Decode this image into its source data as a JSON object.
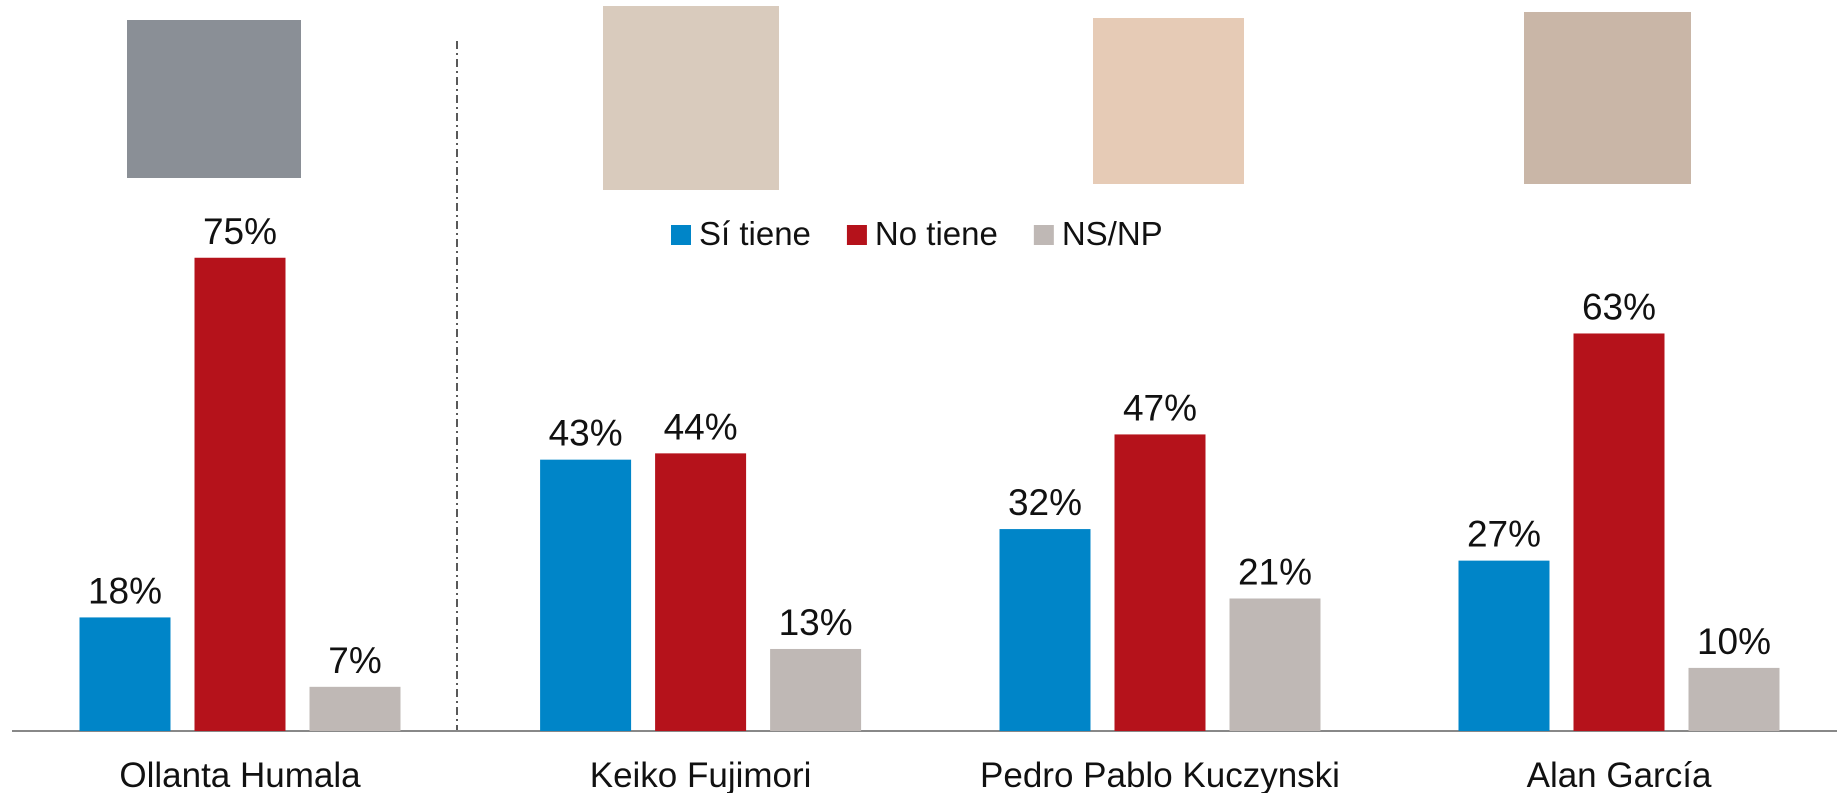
{
  "chart_data": {
    "type": "bar",
    "categories": [
      "Ollanta Humala",
      "Keiko Fujimori",
      "Pedro Pablo Kuczynski",
      "Alan García"
    ],
    "series": [
      {
        "name": "Sí tiene",
        "color": "#0085c8",
        "values": [
          18,
          43,
          32,
          27
        ],
        "value_labels": [
          "18%",
          "43%",
          "32%",
          "27%"
        ]
      },
      {
        "name": "No tiene",
        "color": "#b5121b",
        "values": [
          75,
          44,
          47,
          63
        ],
        "value_labels": [
          "75%",
          "44%",
          "47%",
          "63%"
        ]
      },
      {
        "name": "NS/NP",
        "color": "#bfb8b5",
        "values": [
          7,
          13,
          21,
          10
        ],
        "value_labels": [
          "7%",
          "13%",
          "21%",
          "10%"
        ]
      }
    ]
  }
}
